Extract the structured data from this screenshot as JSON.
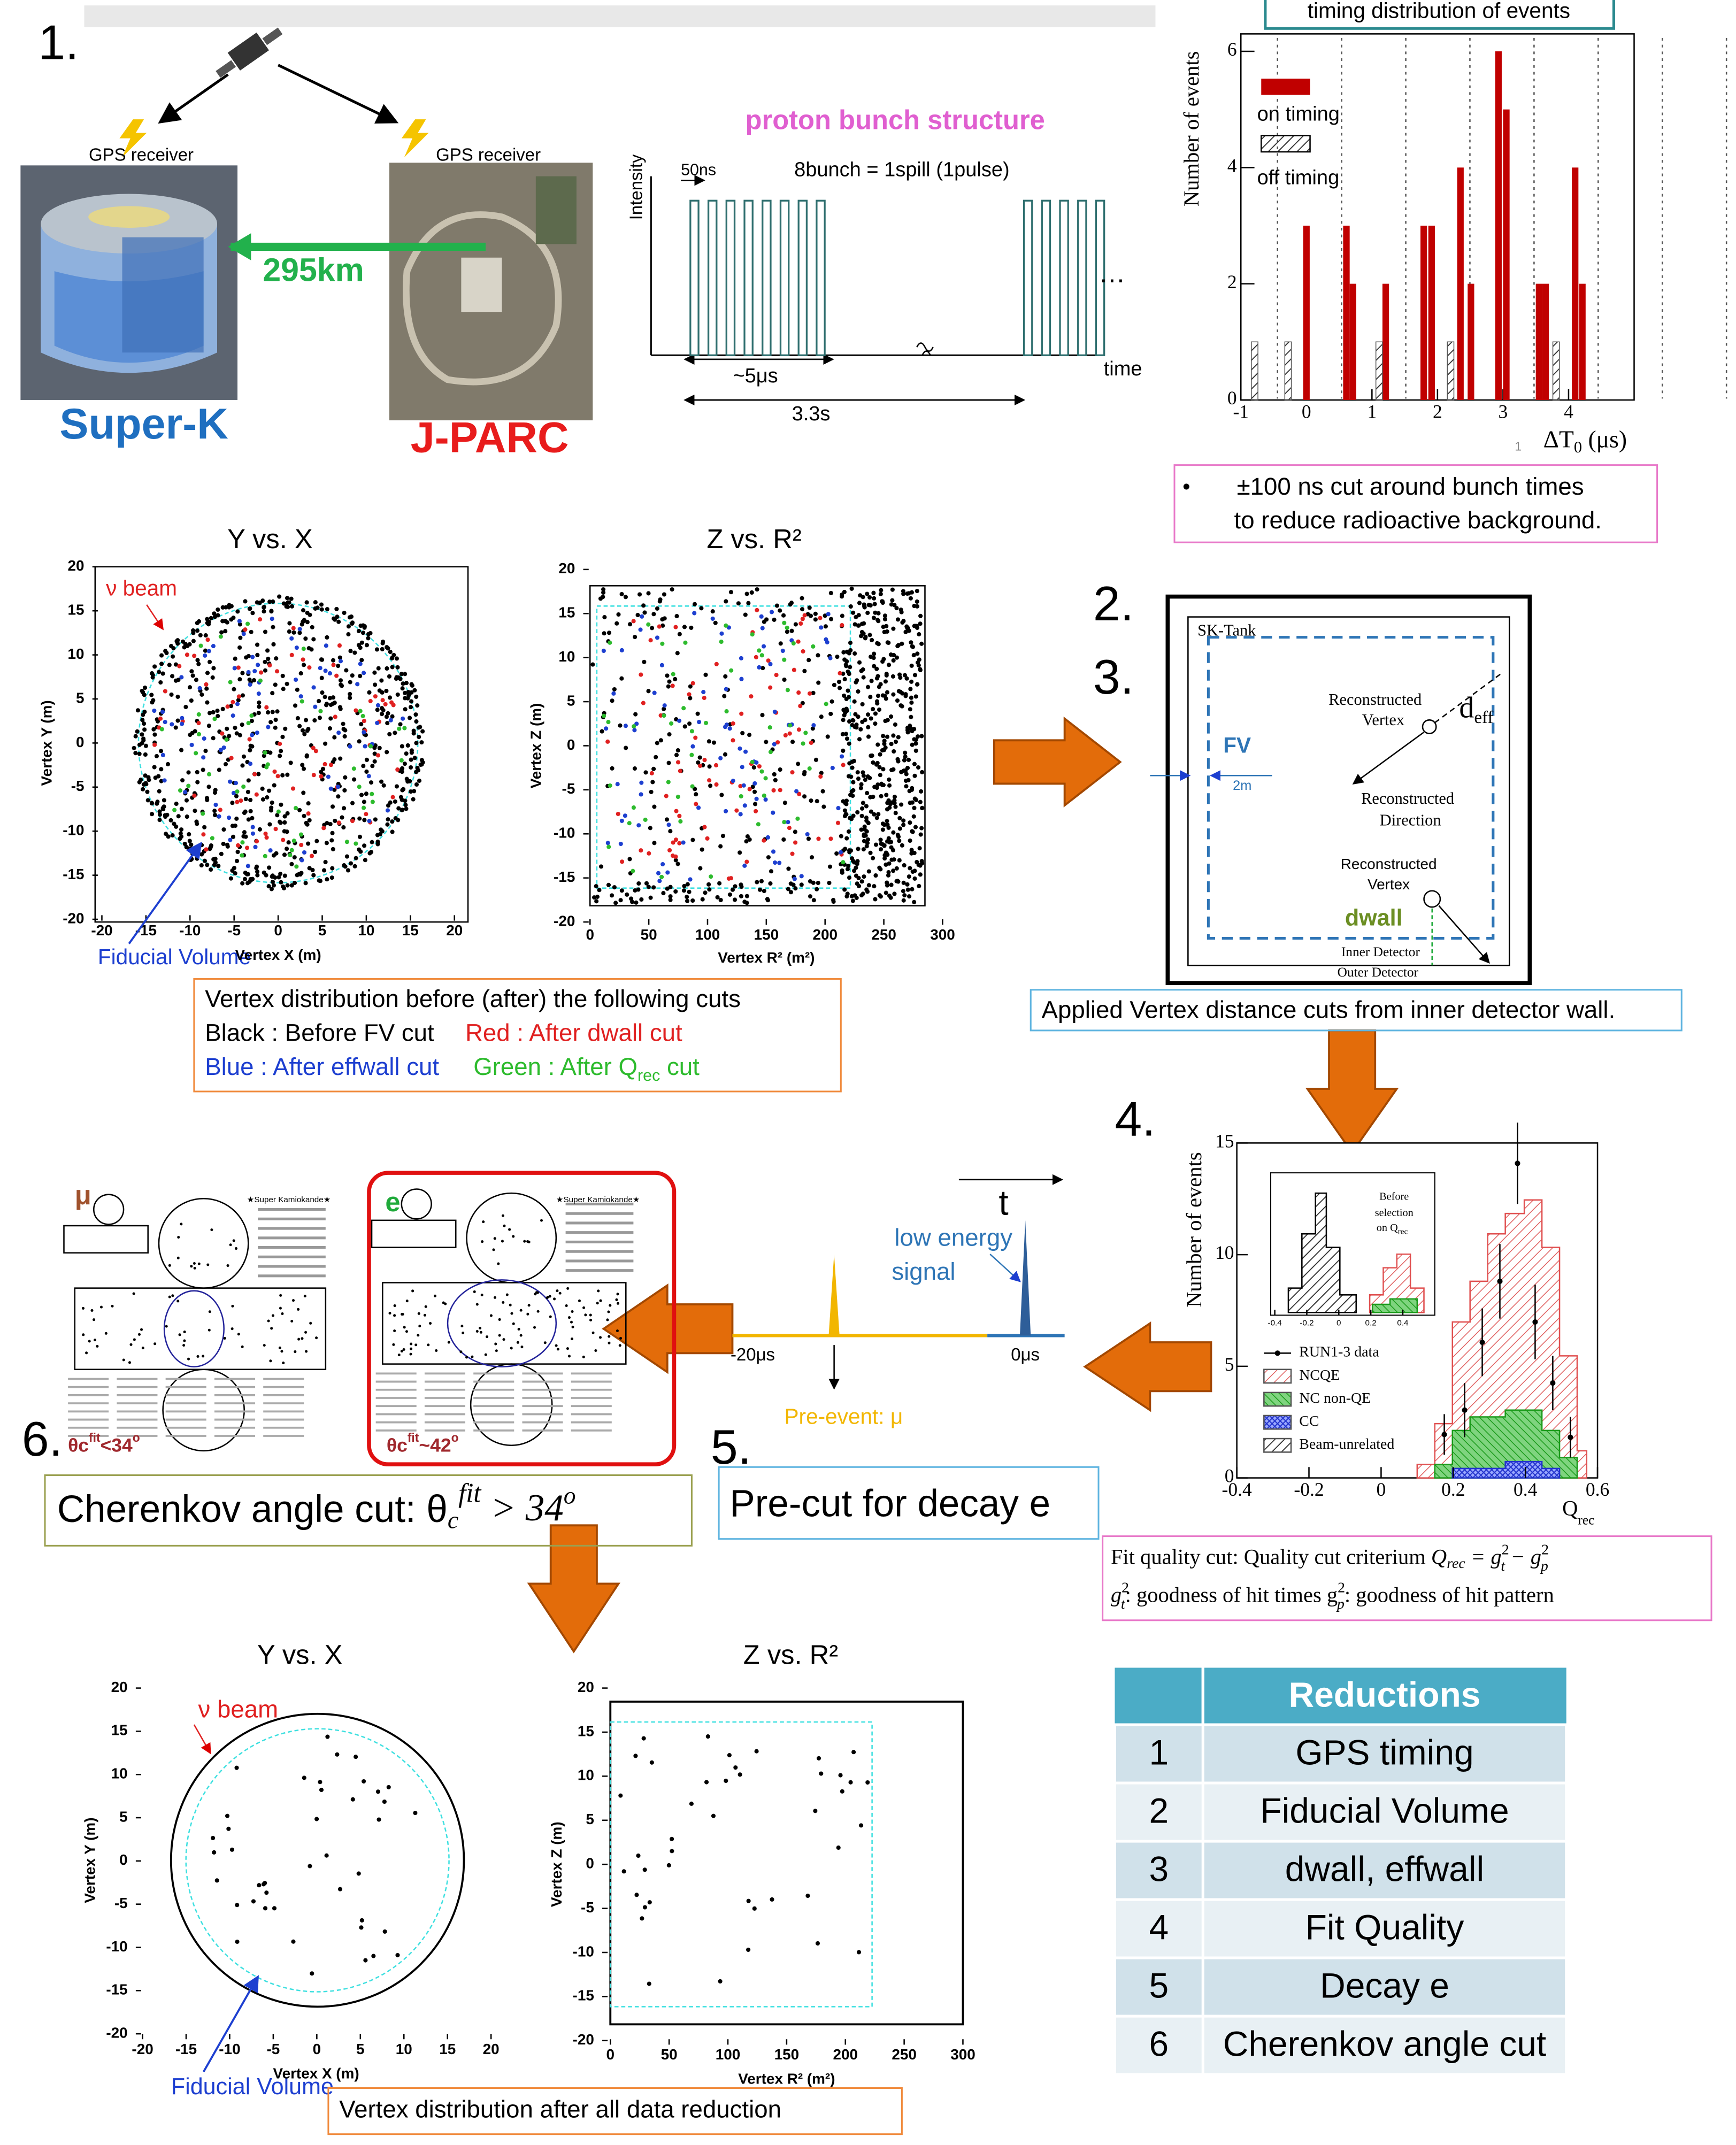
{
  "steps": [
    "1.",
    "2.",
    "3.",
    "4.",
    "5.",
    "6."
  ],
  "gps": {
    "receiver_left": "GPS receiver",
    "receiver_right": "GPS receiver",
    "distance": "295km",
    "super_k": "Super-K",
    "jparc": "J-PARC"
  },
  "bunch": {
    "title": "proton bunch structure",
    "ylabel": "Intensity",
    "spacing": "50ns",
    "bunches": "8bunch = 1spill (1pulse)",
    "width": "~5μs",
    "period": "3.3s",
    "xlabel": "time",
    "ellipsis": "…"
  },
  "timing_plot": {
    "type": "bar",
    "title": "timing distribution of events",
    "ylabel": "Number of events",
    "xlabel": [
      "ΔT",
      "0",
      " (μs)"
    ],
    "page_mark": "1",
    "xlim": [
      -1,
      5
    ],
    "ylim": [
      0,
      6.3
    ],
    "xticks": [
      -1,
      0,
      1,
      2,
      3,
      4
    ],
    "yticks": [
      0,
      2,
      4,
      6
    ],
    "series": [
      {
        "name": "on timing",
        "color": "#c00000",
        "x": [
          0,
          0.61,
          0.71,
          1.21,
          1.79,
          1.91,
          2.35,
          2.51,
          2.93,
          3.05,
          3.55,
          3.65,
          4.1,
          4.21
        ],
        "values": [
          3,
          3,
          2,
          2,
          3,
          3,
          4,
          2,
          6,
          5,
          2,
          2,
          4,
          2
        ]
      },
      {
        "name": "off timing",
        "color": "#555555",
        "x": [
          -0.79,
          -0.28,
          1.11,
          2.2,
          3.81
        ],
        "values": [
          1,
          1,
          1,
          1,
          1
        ]
      }
    ]
  },
  "timing_note": [
    "±100 ns cut around bunch times",
    "to reduce radioactive background."
  ],
  "vertex_before": {
    "left": {
      "title": "Y vs. X",
      "xlabel": "Vertex X (m)",
      "ylabel": "Vertex Y (m)",
      "xlim": [
        -20,
        20
      ],
      "ylim": [
        -20,
        20
      ],
      "xticks": [
        -20,
        -15,
        -10,
        -5,
        0,
        5,
        10,
        15,
        20
      ],
      "yticks": [
        -20,
        -15,
        -10,
        -5,
        0,
        5,
        10,
        15,
        20
      ],
      "beam": "ν beam",
      "fv": "Fiducial Volume"
    },
    "right": {
      "title": "Z vs. R²",
      "xlabel": "Vertex R² (m²)",
      "ylabel": "Vertex Z (m)",
      "xlim": [
        0,
        300
      ],
      "ylim": [
        -20,
        20
      ],
      "xticks": [
        0,
        50,
        100,
        150,
        200,
        250,
        300
      ],
      "yticks": [
        -20,
        -15,
        -10,
        -5,
        0,
        5,
        10,
        15,
        20
      ]
    },
    "legend": {
      "line1": "Vertex distribution before (after) the following cuts",
      "black": "Black : Before FV cut",
      "red": "Red : After dwall cut",
      "blue": "Blue : After effwall cut",
      "green": [
        "Green : After Q",
        "rec",
        " cut"
      ]
    }
  },
  "tank": {
    "sk_tank": "SK-Tank",
    "rec_vertex": [
      "Reconstructed",
      "Vertex"
    ],
    "deff": [
      "d",
      "eff"
    ],
    "rec_direction": [
      "Reconstructed",
      "Direction"
    ],
    "rec_vertex2": [
      "Reconstructed",
      "Vertex"
    ],
    "fv": "FV",
    "two_m": "2m",
    "dwall": "dwall",
    "inner": "Inner Detector",
    "outer": "Outer Detector",
    "caption": "Applied Vertex distance cuts from inner detector wall."
  },
  "qrec_plot": {
    "ylabel": "Number of events",
    "xlabel": [
      "Q",
      "rec"
    ],
    "xlim": [
      -0.4,
      0.6
    ],
    "ylim": [
      0,
      15
    ],
    "xticks": [
      -0.4,
      -0.2,
      0,
      0.2,
      0.4,
      0.6
    ],
    "yticks": [
      0,
      5,
      10,
      15
    ],
    "inset_xticks": [
      -0.4,
      -0.2,
      0,
      0.2,
      0.4
    ],
    "inset_text": [
      "Before",
      "selection",
      "on Q",
      "rec"
    ],
    "legend": [
      "RUN1-3 data",
      "NCQE",
      "NC non-QE",
      "CC",
      "Beam-unrelated"
    ]
  },
  "fit_note": {
    "line1": [
      "Fit quality cut: Quality cut criterium ",
      "Q",
      "rec",
      " = g",
      "2",
      "t",
      " − g",
      "2",
      "p"
    ],
    "line2": [
      "g",
      "2",
      "t",
      ": goodness of hit times  g",
      "2",
      "p",
      ": goodness of hit pattern"
    ]
  },
  "decay": {
    "t": "t",
    "low_energy": [
      "low energy",
      "signal"
    ],
    "minus20": "-20μs",
    "zero": "0μs",
    "pre_event": "Pre-event: μ",
    "box": "Pre-cut for decay e"
  },
  "events": {
    "mu": "μ",
    "e": "e",
    "mu_angle": [
      "θc",
      "fit",
      "<34",
      "o"
    ],
    "e_angle": [
      "θc",
      "fit",
      "~42",
      "o"
    ],
    "sk_label": "★Super Kamiokande★"
  },
  "cherenkov": [
    "Cherenkov angle cut: θ",
    "c",
    "fit",
    " > 34",
    "o"
  ],
  "vertex_after": {
    "left": {
      "title": "Y vs. X",
      "xlabel": "Vertex X (m)",
      "ylabel": "Vertex Y (m)",
      "xlim": [
        -20,
        20
      ],
      "ylim": [
        -20,
        20
      ],
      "xticks": [
        -20,
        -15,
        -10,
        -5,
        0,
        5,
        10,
        15,
        20
      ],
      "yticks": [
        -20,
        -15,
        -10,
        -5,
        0,
        5,
        10,
        15,
        20
      ],
      "beam": "ν beam",
      "fv": "Fiducial Volume"
    },
    "right": {
      "title": "Z vs. R²",
      "xlabel": "Vertex R² (m²)",
      "ylabel": "Vertex Z (m)",
      "xlim": [
        0,
        300
      ],
      "ylim": [
        -20,
        20
      ],
      "xticks": [
        0,
        50,
        100,
        150,
        200,
        250,
        300
      ],
      "yticks": [
        -20,
        -15,
        -10,
        -5,
        0,
        5,
        10,
        15,
        20
      ]
    },
    "caption": "Vertex distribution after all data reduction"
  },
  "table": {
    "header": [
      "",
      "Reductions"
    ],
    "rows": [
      [
        "1",
        "GPS timing"
      ],
      [
        "2",
        "Fiducial Volume"
      ],
      [
        "3",
        "dwall, effwall"
      ],
      [
        "4",
        "Fit Quality"
      ],
      [
        "5",
        "Decay e"
      ],
      [
        "6",
        "Cherenkov angle cut"
      ]
    ]
  }
}
